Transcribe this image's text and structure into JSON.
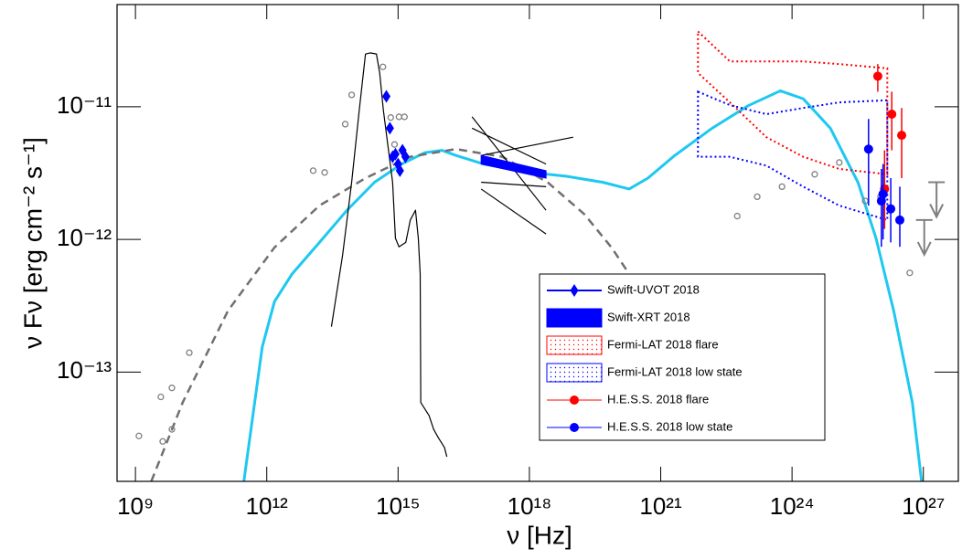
{
  "chart_data": {
    "type": "line",
    "xlabel": "ν [Hz]",
    "ylabel": "ν Fν [erg cm⁻² s⁻¹]",
    "xscale": "log",
    "yscale": "log",
    "xlim": [
      380000000.0,
      6.3e+27
    ],
    "ylim": [
      1.5e-14,
      5.9e-11
    ],
    "xticks": [
      {
        "value": 1000000000.0,
        "label": "10⁹"
      },
      {
        "value": 1000000000000.0,
        "label": "10¹²"
      },
      {
        "value": 1000000000000000.0,
        "label": "10¹⁵"
      },
      {
        "value": 1e+18,
        "label": "10¹⁸"
      },
      {
        "value": 1e+21,
        "label": "10²¹"
      },
      {
        "value": 1e+24,
        "label": "10²⁴"
      },
      {
        "value": 1e+27,
        "label": "10²⁷"
      }
    ],
    "yticks": [
      {
        "value": 1e-13,
        "label": "10⁻¹³"
      },
      {
        "value": 1e-12,
        "label": "10⁻¹²"
      },
      {
        "value": 1e-11,
        "label": "10⁻¹¹"
      }
    ],
    "series": [
      {
        "name": "Swift-UVOT 2018",
        "type": "scatter",
        "marker": "diamond",
        "color": "#0000ff",
        "x": [
          540000000000000.0,
          650000000000000.0,
          750000000000000.0,
          870000000000000.0,
          1000000000000000.0,
          1100000000000000.0,
          1260000000000000.0,
          1470000000000000.0
        ],
        "values": [
          1.2e-11,
          6.9e-12,
          4.2e-12,
          4.4e-12,
          3.7e-12,
          3.3e-12,
          4.7e-12,
          4.2e-12
        ]
      },
      {
        "name": "Swift-XRT 2018",
        "type": "band",
        "fill": "solid",
        "color": "#0000ff",
        "x": [
          7.9e+16,
          2.4e+18
        ],
        "upper": [
          4.3e-12,
          3.3e-12
        ],
        "lower": [
          3.7e-12,
          2.9e-12
        ]
      },
      {
        "name": "Fermi-LAT 2018 flare",
        "type": "band",
        "fill": "dotted",
        "color": "#ff0000",
        "x": [
          7.1e+21,
          3.8e+22,
          2.6e+23,
          1.8e+24,
          1.2e+25,
          1.5e+26
        ],
        "upper": [
          3.7e-11,
          2.2e-11,
          2.2e-11,
          2.2e-11,
          2.1e-11,
          1.95e-11
        ],
        "lower": [
          1.8e-11,
          1.08e-11,
          5.9e-12,
          4.2e-12,
          3.4e-12,
          3.1e-12
        ]
      },
      {
        "name": "Fermi-LAT 2018 low state",
        "type": "band",
        "fill": "dotted",
        "color": "#0000ff",
        "x": [
          7.1e+21,
          3.8e+22,
          2.6e+23,
          1.8e+24,
          1.2e+25,
          1.5e+26
        ],
        "upper": [
          1.3e-11,
          1.03e-11,
          8.8e-12,
          9.8e-12,
          1.08e-11,
          1.12e-11
        ],
        "lower": [
          4.2e-12,
          4.2e-12,
          3.6e-12,
          2.5e-12,
          1.8e-12,
          1.4e-12
        ]
      },
      {
        "name": "H.E.S.S. 2018 flare",
        "type": "errorbar",
        "marker": "circle",
        "color": "#ff0000",
        "x": [
          9.1e+25,
          1.3e+26,
          1.9e+26,
          3.2e+26
        ],
        "values": [
          1.7e-11,
          2.4e-12,
          8.8e-12,
          6.1e-12
        ],
        "yerr_low": [
          4e-12,
          1.2e-12,
          4.1e-12,
          3.2e-12
        ],
        "yerr_high": [
          4e-12,
          2.3e-12,
          4.2e-12,
          3.7e-12
        ]
      },
      {
        "name": "H.E.S.S. 2018 low state",
        "type": "errorbar",
        "marker": "circle",
        "color": "#0000ff",
        "x": [
          5.6e+25,
          1.1e+26,
          1.2e+26,
          1.8e+26,
          2.9e+26
        ],
        "values": [
          4.8e-12,
          1.95e-12,
          2.2e-12,
          1.7e-12,
          1.4e-12
        ],
        "yerr_low": [
          3e-12,
          1.07e-12,
          1.2e-12,
          7.5e-13,
          5.2e-13
        ],
        "yerr_high": [
          3.3e-12,
          1.45e-12,
          1.5e-12,
          1.2e-12,
          1.1e-12
        ]
      },
      {
        "type": "line",
        "color": "#1ec8f0",
        "width": 3,
        "x": [
          300000000000.0,
          790000000000.0,
          1500000000000.0,
          3800000000000.0,
          16000000000000.0,
          68000000000000.0,
          290000000000000.0,
          1200000000000000.0,
          4000000000000000.0,
          1e+16,
          2.1e+16,
          9.1e+16,
          1e+18,
          6.8e+18,
          4.7e+19,
          1.9e+20,
          5.1e+20,
          2.1e+21,
          1.5e+22,
          1e+23,
          5.4e+23,
          1.8e+24,
          7.5e+24,
          3.2e+25,
          8.3e+25,
          2.1e+26,
          5.6e+26,
          9.1e+26
        ],
        "values": [
          1.5e-14,
          1.55e-13,
          3.4e-13,
          5.5e-13,
          9.5e-13,
          1.66e-12,
          2.7e-12,
          3.7e-12,
          4.5e-12,
          4.7e-12,
          4.3e-12,
          3.7e-12,
          3.2e-12,
          3e-12,
          2.7e-12,
          2.4e-12,
          2.9e-12,
          4.3e-12,
          6.9e-12,
          1.02e-11,
          1.32e-11,
          1.15e-11,
          6.9e-12,
          2.7e-12,
          1.02e-12,
          2.9e-13,
          5.9e-14,
          1.5e-14
        ]
      },
      {
        "type": "line",
        "color": "#707070",
        "width": 2.5,
        "dash": "dashed",
        "x": [
          2300000000.0,
          12000000000.0,
          130000000000.0,
          1500000000000.0,
          16000000000000.0,
          180000000000000.0,
          1900000000000000.0,
          2.1e+16,
          2.4e+17,
          2.6e+18,
          1.8e+19,
          7.5e+19,
          1.9e+20
        ],
        "values": [
          1.5e-14,
          5.9e-14,
          2.9e-13,
          8.7e-13,
          1.8e-12,
          2.9e-12,
          4.2e-12,
          4.8e-12,
          4.2e-12,
          2.7e-12,
          1.55e-12,
          8.7e-13,
          5.5e-13
        ]
      },
      {
        "type": "line",
        "color": "#000000",
        "width": 1.2,
        "x": [
          30000000000000.0,
          54000000000000.0,
          87000000000000.0,
          130000000000000.0,
          180000000000000.0,
          230000000000000.0,
          320000000000000.0,
          380000000000000.0,
          460000000000000.0,
          590000000000000.0,
          750000000000000.0,
          870000000000000.0,
          1050000000000000.0,
          1500000000000000.0,
          1900000000000000.0,
          2500000000000000.0,
          2900000000000000.0,
          3200000000000000.0,
          3300000000000000.0,
          5100000000000000.0,
          6500000000000000.0,
          8300000000000000.0,
          1.15e+16,
          1.3e+16
        ],
        "values": [
          2.2e-13,
          7.6e-13,
          2.7e-12,
          9.5e-12,
          2.5e-11,
          2.55e-11,
          2.5e-11,
          1.8e-11,
          9.5e-12,
          5e-12,
          2.7e-12,
          1.02e-12,
          8.8e-13,
          9.5e-13,
          1.4e-12,
          1.66e-12,
          1.02e-12,
          5.5e-13,
          5.9e-14,
          4.7e-14,
          3.7e-14,
          3.2e-14,
          2.7e-14,
          2.3e-14
        ]
      },
      {
        "type": "scatter",
        "marker": "circle-open",
        "color": "#808080",
        "x": [
          1200000000.0,
          4200000000.0,
          3800000000.0,
          6800000000.0,
          6800000000.0,
          17000000000.0,
          11500000000000.0,
          21000000000000.0,
          62000000000000.0,
          87000000000000.0,
          450000000000000.0,
          680000000000000.0,
          1050000000000000.0,
          1400000000000000.0,
          830000000000000.0,
          5.6e+22,
          1.6e+23,
          5.9e+23,
          3.3e+24,
          1.2e+25,
          4.7e+25,
          1.05e+26,
          4.9e+26
        ],
        "values": [
          3.3e-14,
          3e-14,
          6.5e-14,
          7.6e-14,
          3.7e-14,
          1.4e-13,
          3.3e-12,
          3.2e-12,
          7.4e-12,
          1.23e-11,
          2e-11,
          8.3e-12,
          8.4e-12,
          8.4e-12,
          5.2e-12,
          1.5e-12,
          2.1e-12,
          2.5e-12,
          3.1e-12,
          3.8e-12,
          1.95e-12,
          2.1e-12,
          5.6e-13
        ]
      },
      {
        "type": "upper-limit",
        "color": "#808080",
        "x": [
          1.05e+27,
          2e+27
        ],
        "values": [
          1.4e-12,
          2.7e-12
        ]
      },
      {
        "type": "line",
        "color": "#000000",
        "width": 1.2,
        "x": [
          4.9e+16,
          2.4e+18
        ],
        "values": [
          8.4e-12,
          1.66e-12
        ]
      },
      {
        "type": "line",
        "color": "#000000",
        "width": 1.2,
        "x": [
          4.9e+16,
          2.4e+18
        ],
        "values": [
          6.9e-12,
          3.7e-12
        ]
      },
      {
        "type": "line",
        "color": "#000000",
        "width": 1.2,
        "x": [
          7.9e+16,
          2.4e+18
        ],
        "values": [
          2.7e-12,
          2.5e-12
        ]
      },
      {
        "type": "line",
        "color": "#000000",
        "width": 1.2,
        "x": [
          7.9e+16,
          1e+19
        ],
        "values": [
          4.3e-12,
          5.9e-12
        ]
      },
      {
        "type": "line",
        "color": "#000000",
        "width": 1.2,
        "x": [
          7.9e+16,
          2.4e+18
        ],
        "values": [
          2.4e-12,
          1.1e-12
        ]
      }
    ]
  }
}
